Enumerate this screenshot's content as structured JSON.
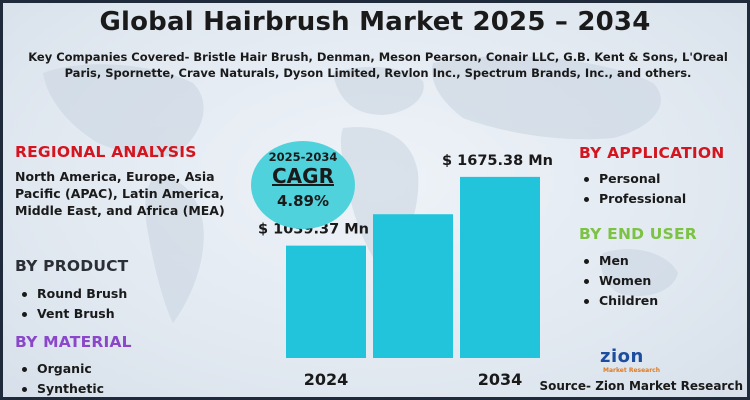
{
  "title": "Global Hairbrush Market 2025 – 2034",
  "companies": "Key Companies Covered- Bristle Hair Brush, Denman, Meson Pearson, Conair LLC, G.B. Kent & Sons, L'Oreal Paris, Spornette, Crave Naturals, Dyson Limited, Revlon Inc., Spectrum Brands, Inc., and others.",
  "regional": {
    "heading": "REGIONAL ANALYSIS",
    "text": "North America, Europe, Asia Pacific (APAC), Latin America, Middle East, and Africa (MEA)"
  },
  "product": {
    "heading": "BY PRODUCT",
    "items": [
      "Round Brush",
      "Vent Brush"
    ]
  },
  "material": {
    "heading": "BY MATERIAL",
    "items": [
      "Organic",
      "Synthetic"
    ]
  },
  "application": {
    "heading": "BY APPLICATION",
    "items": [
      "Personal",
      "Professional"
    ]
  },
  "end_user": {
    "heading": "BY END USER",
    "items": [
      "Men",
      "Women",
      "Children"
    ]
  },
  "cagr": {
    "years": "2025-2034",
    "label": "CAGR",
    "value": "4.89%"
  },
  "logo": {
    "name": "zion",
    "sub": "Market Research"
  },
  "source": "Source- Zion Market Research",
  "colors": {
    "bar": "#22c4dc",
    "cagr_circle": "#4fd2dc",
    "red_heading": "#d4141e",
    "purple_heading": "#8a47c9",
    "green_heading": "#7cc243"
  },
  "chart_data": {
    "type": "bar",
    "categories": [
      "2024",
      "",
      "2034"
    ],
    "values": [
      1039.37,
      1330,
      1675.38
    ],
    "data_labels": [
      "$ 1039.37 Mn",
      "",
      "$ 1675.38 Mn"
    ],
    "unit": "USD Million",
    "ylim": [
      0,
      1850
    ],
    "grid": false
  }
}
